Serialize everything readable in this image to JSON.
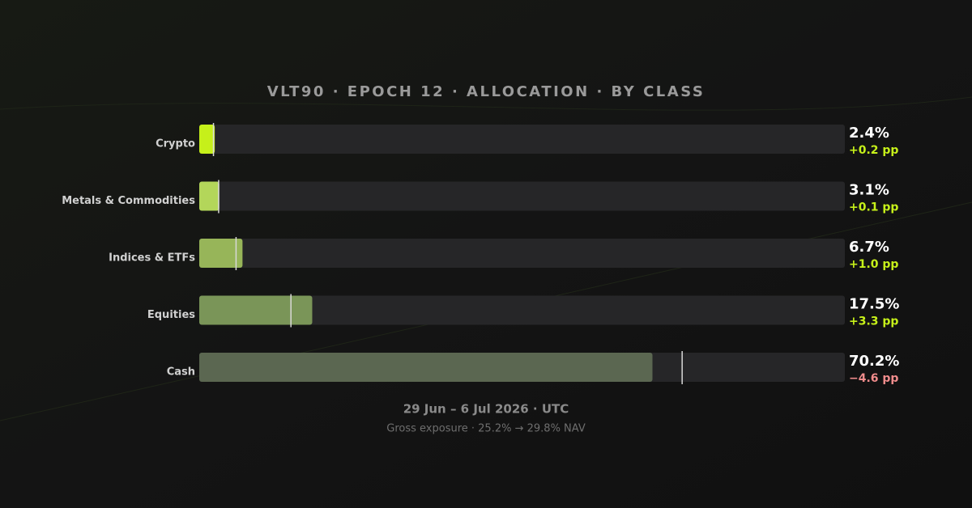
{
  "chart_data": {
    "type": "bar",
    "title": "VLT90 · EPOCH 12 · ALLOCATION · BY CLASS",
    "subtitle": "29 Jun – 6 Jul 2026 · UTC",
    "footnote": "Gross exposure · 25.2% → 29.8% NAV",
    "categories": [
      "Crypto",
      "Metals & Commodities",
      "Indices & ETFs",
      "Equities",
      "Cash"
    ],
    "values": [
      2.4,
      3.1,
      6.7,
      17.5,
      70.2
    ],
    "value_labels": [
      "2.4%",
      "3.1%",
      "6.7%",
      "17.5%",
      "70.2%"
    ],
    "previous": [
      2.2,
      3.0,
      5.7,
      14.2,
      74.8
    ],
    "changes": [
      0.2,
      0.1,
      1.0,
      3.3,
      -4.6
    ],
    "change_labels": [
      "+0.2 pp",
      "+0.1 pp",
      "+1.0 pp",
      "+3.3 pp",
      "−4.6 pp"
    ],
    "colors": [
      "#c6f01a",
      "#b3d65a",
      "#97b559",
      "#7a9558",
      "#5b6751"
    ],
    "xlim": [
      0,
      100
    ]
  }
}
